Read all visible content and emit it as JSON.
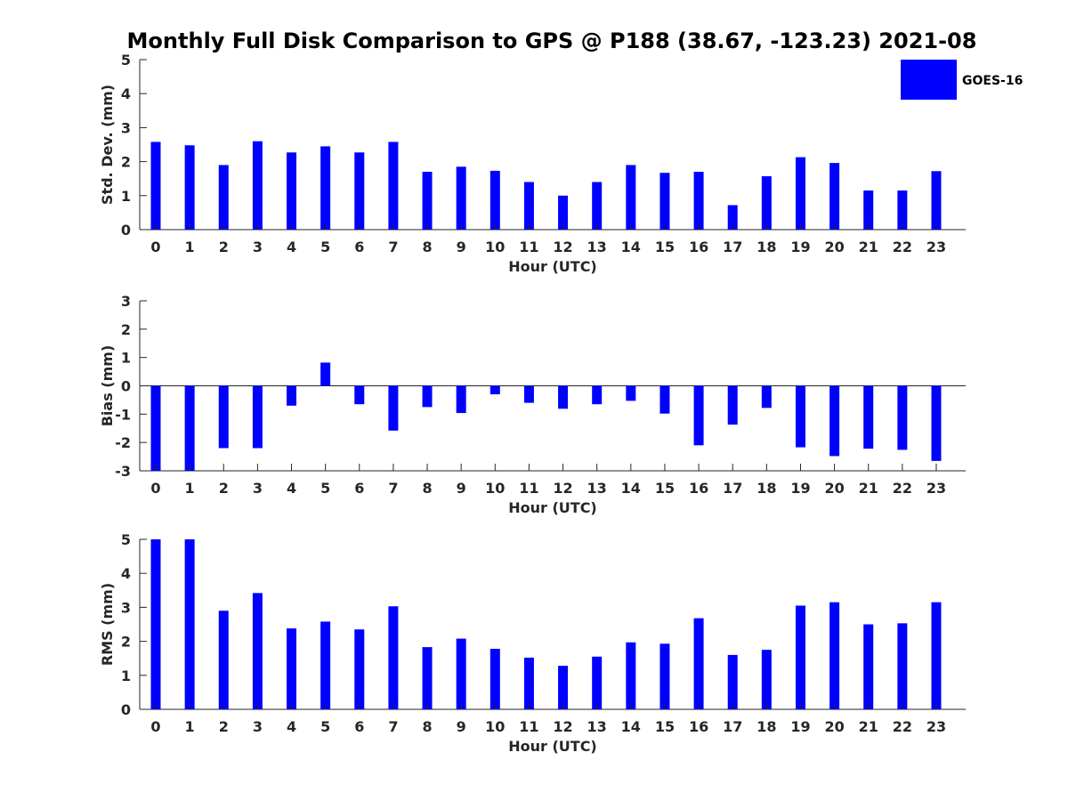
{
  "title": "Monthly Full Disk Comparison to GPS @ P188 (38.67, -123.23) 2021-08",
  "legend": {
    "label": "GOES-16",
    "color": "#0000ff",
    "placement": "top-right"
  },
  "chart_data": [
    {
      "type": "bar",
      "xlabel": "Hour (UTC)",
      "ylabel": "Std. Dev. (mm)",
      "ylim": [
        0,
        5
      ],
      "yticks": [
        0,
        1,
        2,
        3,
        4,
        5
      ],
      "categories": [
        "0",
        "1",
        "2",
        "3",
        "4",
        "5",
        "6",
        "7",
        "8",
        "9",
        "10",
        "11",
        "12",
        "13",
        "14",
        "15",
        "16",
        "17",
        "18",
        "19",
        "20",
        "21",
        "22",
        "23"
      ],
      "series": [
        {
          "name": "GOES-16",
          "color": "#0000ff",
          "values": [
            2.58,
            2.48,
            1.9,
            2.6,
            2.27,
            2.45,
            2.27,
            2.58,
            1.7,
            1.85,
            1.73,
            1.4,
            1.0,
            1.4,
            1.9,
            1.67,
            1.7,
            0.72,
            1.57,
            2.13,
            1.96,
            1.15,
            1.15,
            1.72
          ]
        }
      ],
      "grid": false
    },
    {
      "type": "bar",
      "xlabel": "Hour (UTC)",
      "ylabel": "Bias (mm)",
      "ylim": [
        -3,
        3
      ],
      "yticks": [
        -3,
        -2,
        -1,
        0,
        1,
        2,
        3
      ],
      "categories": [
        "0",
        "1",
        "2",
        "3",
        "4",
        "5",
        "6",
        "7",
        "8",
        "9",
        "10",
        "11",
        "12",
        "13",
        "14",
        "15",
        "16",
        "17",
        "18",
        "19",
        "20",
        "21",
        "22",
        "23"
      ],
      "series": [
        {
          "name": "GOES-16",
          "color": "#0000ff",
          "values": [
            -3.0,
            -3.0,
            -2.2,
            -2.2,
            -0.7,
            0.82,
            -0.65,
            -1.58,
            -0.75,
            -0.96,
            -0.3,
            -0.6,
            -0.81,
            -0.65,
            -0.53,
            -0.98,
            -2.1,
            -1.37,
            -0.78,
            -2.17,
            -2.48,
            -2.22,
            -2.26,
            -2.65
          ]
        }
      ],
      "grid": false
    },
    {
      "type": "bar",
      "xlabel": "Hour (UTC)",
      "ylabel": "RMS (mm)",
      "ylim": [
        0,
        5
      ],
      "yticks": [
        0,
        1,
        2,
        3,
        4,
        5
      ],
      "categories": [
        "0",
        "1",
        "2",
        "3",
        "4",
        "5",
        "6",
        "7",
        "8",
        "9",
        "10",
        "11",
        "12",
        "13",
        "14",
        "15",
        "16",
        "17",
        "18",
        "19",
        "20",
        "21",
        "22",
        "23"
      ],
      "series": [
        {
          "name": "GOES-16",
          "color": "#0000ff",
          "values": [
            5.0,
            5.0,
            2.9,
            3.42,
            2.38,
            2.58,
            2.35,
            3.03,
            1.83,
            2.08,
            1.78,
            1.52,
            1.28,
            1.55,
            1.97,
            1.93,
            2.68,
            1.6,
            1.75,
            3.05,
            3.15,
            2.5,
            2.53,
            3.15
          ]
        }
      ],
      "grid": false
    }
  ]
}
